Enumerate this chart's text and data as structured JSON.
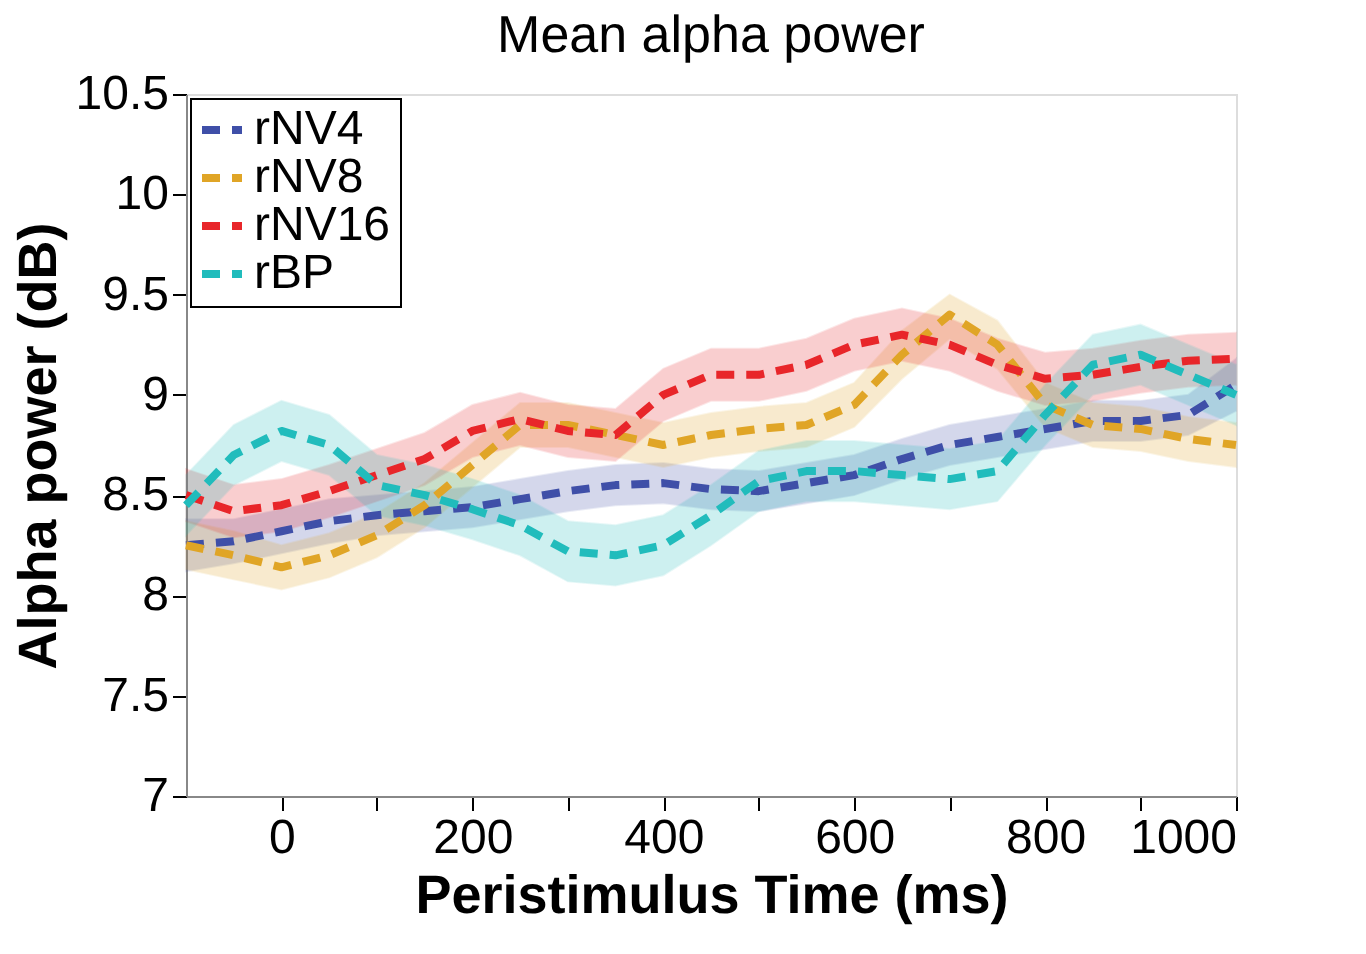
{
  "chart_data": {
    "type": "line",
    "title": "Mean alpha power",
    "xlabel": "Peristimulus Time (ms)",
    "ylabel": "Alpha power (dB)",
    "x": [
      -100,
      -50,
      0,
      50,
      100,
      150,
      200,
      250,
      300,
      350,
      400,
      450,
      500,
      550,
      600,
      650,
      700,
      750,
      800,
      850,
      900,
      950,
      1000
    ],
    "series": [
      {
        "name": "rNV4",
        "color": "#3f4fa8",
        "values": [
          8.25,
          8.27,
          8.32,
          8.37,
          8.4,
          8.42,
          8.44,
          8.48,
          8.52,
          8.55,
          8.56,
          8.53,
          8.52,
          8.56,
          8.6,
          8.68,
          8.75,
          8.79,
          8.83,
          8.87,
          8.87,
          8.9,
          9.05
        ],
        "lower": [
          8.12,
          8.16,
          8.21,
          8.26,
          8.3,
          8.32,
          8.34,
          8.38,
          8.42,
          8.45,
          8.46,
          8.43,
          8.42,
          8.46,
          8.5,
          8.58,
          8.65,
          8.69,
          8.73,
          8.77,
          8.77,
          8.8,
          8.92
        ],
        "upper": [
          8.38,
          8.38,
          8.43,
          8.48,
          8.5,
          8.52,
          8.54,
          8.58,
          8.62,
          8.65,
          8.66,
          8.63,
          8.62,
          8.66,
          8.7,
          8.78,
          8.85,
          8.89,
          8.93,
          8.97,
          8.97,
          9.0,
          9.18
        ]
      },
      {
        "name": "rNV8",
        "color": "#e0a526",
        "values": [
          8.25,
          8.2,
          8.14,
          8.2,
          8.3,
          8.45,
          8.65,
          8.85,
          8.85,
          8.8,
          8.75,
          8.8,
          8.83,
          8.85,
          8.95,
          9.2,
          9.4,
          9.25,
          8.95,
          8.85,
          8.83,
          8.78,
          8.75
        ],
        "lower": [
          8.13,
          8.08,
          8.03,
          8.09,
          8.19,
          8.34,
          8.54,
          8.74,
          8.74,
          8.69,
          8.64,
          8.69,
          8.72,
          8.74,
          8.84,
          9.08,
          9.28,
          9.13,
          8.84,
          8.74,
          8.72,
          8.67,
          8.64
        ],
        "upper": [
          8.37,
          8.32,
          8.25,
          8.31,
          8.41,
          8.56,
          8.76,
          8.96,
          8.96,
          8.91,
          8.86,
          8.91,
          8.94,
          8.96,
          9.06,
          9.32,
          9.5,
          9.37,
          9.06,
          8.96,
          8.94,
          8.89,
          8.86
        ]
      },
      {
        "name": "rNV16",
        "color": "#e8262a",
        "values": [
          8.5,
          8.42,
          8.45,
          8.52,
          8.6,
          8.68,
          8.82,
          8.88,
          8.82,
          8.8,
          9.0,
          9.1,
          9.1,
          9.15,
          9.25,
          9.3,
          9.25,
          9.15,
          9.08,
          9.1,
          9.14,
          9.17,
          9.18
        ],
        "lower": [
          8.37,
          8.29,
          8.32,
          8.39,
          8.47,
          8.55,
          8.69,
          8.75,
          8.69,
          8.67,
          8.87,
          8.97,
          8.97,
          9.02,
          9.12,
          9.17,
          9.12,
          9.02,
          8.95,
          8.97,
          9.01,
          9.04,
          9.05
        ],
        "upper": [
          8.63,
          8.55,
          8.58,
          8.65,
          8.73,
          8.81,
          8.95,
          9.01,
          8.95,
          8.93,
          9.13,
          9.23,
          9.23,
          9.28,
          9.38,
          9.43,
          9.38,
          9.28,
          9.21,
          9.23,
          9.27,
          9.3,
          9.31
        ]
      },
      {
        "name": "rBP",
        "color": "#21bcbc",
        "values": [
          8.45,
          8.7,
          8.82,
          8.75,
          8.55,
          8.5,
          8.43,
          8.35,
          8.22,
          8.2,
          8.25,
          8.4,
          8.57,
          8.62,
          8.62,
          8.6,
          8.58,
          8.62,
          8.9,
          9.15,
          9.2,
          9.1,
          9.0
        ],
        "lower": [
          8.3,
          8.55,
          8.67,
          8.6,
          8.4,
          8.35,
          8.28,
          8.2,
          8.07,
          8.05,
          8.1,
          8.25,
          8.42,
          8.47,
          8.47,
          8.45,
          8.43,
          8.47,
          8.75,
          9.0,
          9.05,
          8.95,
          8.85
        ],
        "upper": [
          8.6,
          8.85,
          8.97,
          8.9,
          8.7,
          8.65,
          8.58,
          8.5,
          8.37,
          8.35,
          8.4,
          8.55,
          8.72,
          8.77,
          8.77,
          8.75,
          8.73,
          8.77,
          9.05,
          9.3,
          9.35,
          9.25,
          9.15
        ]
      }
    ],
    "xlim": [
      -100,
      1000
    ],
    "xticks": [
      0,
      {
        "value": 100,
        "label": null
      },
      200,
      {
        "value": 300,
        "label": null
      },
      400,
      {
        "value": 500,
        "label": null
      },
      600,
      {
        "value": 700,
        "label": null
      },
      800,
      {
        "value": 900,
        "label": null
      },
      1000
    ],
    "ylim": [
      7,
      10.5
    ],
    "yticks": [
      7,
      7.5,
      8,
      8.5,
      9,
      9.5,
      10,
      10.5
    ],
    "legend": "top left",
    "grid": false,
    "line_style": "dashed",
    "marker": "none"
  }
}
